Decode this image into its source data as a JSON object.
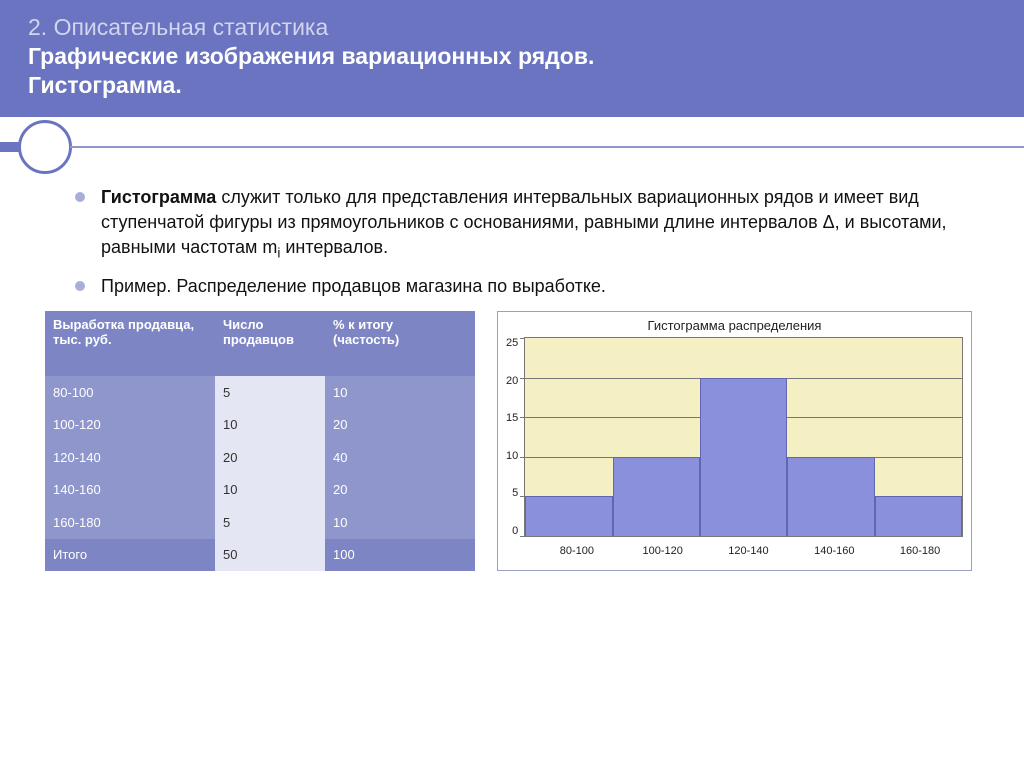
{
  "header": {
    "line1": "2. Описательная статистика",
    "line2": "Графические изображения вариационных рядов.",
    "line3": "Гистограмма."
  },
  "bullets": {
    "b1_prefix": "Гистограмма",
    "b1_rest": " служит только для представления интервальных вариационных рядов и имеет вид ступенчатой фигуры из прямоугольников с основаниями, равными длине интервалов Δ, и высотами, равными частотам m",
    "b1_sub": "i",
    "b1_tail": " интервалов.",
    "b2": "Пример. Распределение продавцов магазина по выработке."
  },
  "table": {
    "headers": {
      "c0a": "Выработка продавца,",
      "c0b": "тыс. руб.",
      "c1a": "Число",
      "c1b": "продавцов",
      "c2a": "% к итогу",
      "c2b": "(частость)"
    },
    "rows": [
      {
        "c0": "80-100",
        "c1": "5",
        "c2": "10"
      },
      {
        "c0": "100-120",
        "c1": "10",
        "c2": "20"
      },
      {
        "c0": "120-140",
        "c1": "20",
        "c2": "40"
      },
      {
        "c0": "140-160",
        "c1": "10",
        "c2": "20"
      },
      {
        "c0": "160-180",
        "c1": "5",
        "c2": "10"
      }
    ],
    "total": {
      "c0": "Итого",
      "c1": "50",
      "c2": "100"
    }
  },
  "chart": {
    "type": "bar",
    "title": "Гистограмма распределения",
    "categories": [
      "80-100",
      "100-120",
      "120-140",
      "140-160",
      "160-180"
    ],
    "values": [
      5,
      10,
      20,
      10,
      5
    ],
    "ylim": [
      0,
      25
    ],
    "ytick_step": 5,
    "yticks": [
      "25",
      "20",
      "15",
      "10",
      "5",
      "0"
    ],
    "bar_color": "#8a90db",
    "bar_border": "#6066b0",
    "plot_bg": "#f5f0c4",
    "grid_color": "#777777",
    "title_fontsize": 13,
    "label_fontsize": 11
  },
  "colors": {
    "accent": "#6a74c0",
    "accent_light": "#8f96cb",
    "table_header": "#7d85c5",
    "table_alt": "#e4e6f3"
  }
}
